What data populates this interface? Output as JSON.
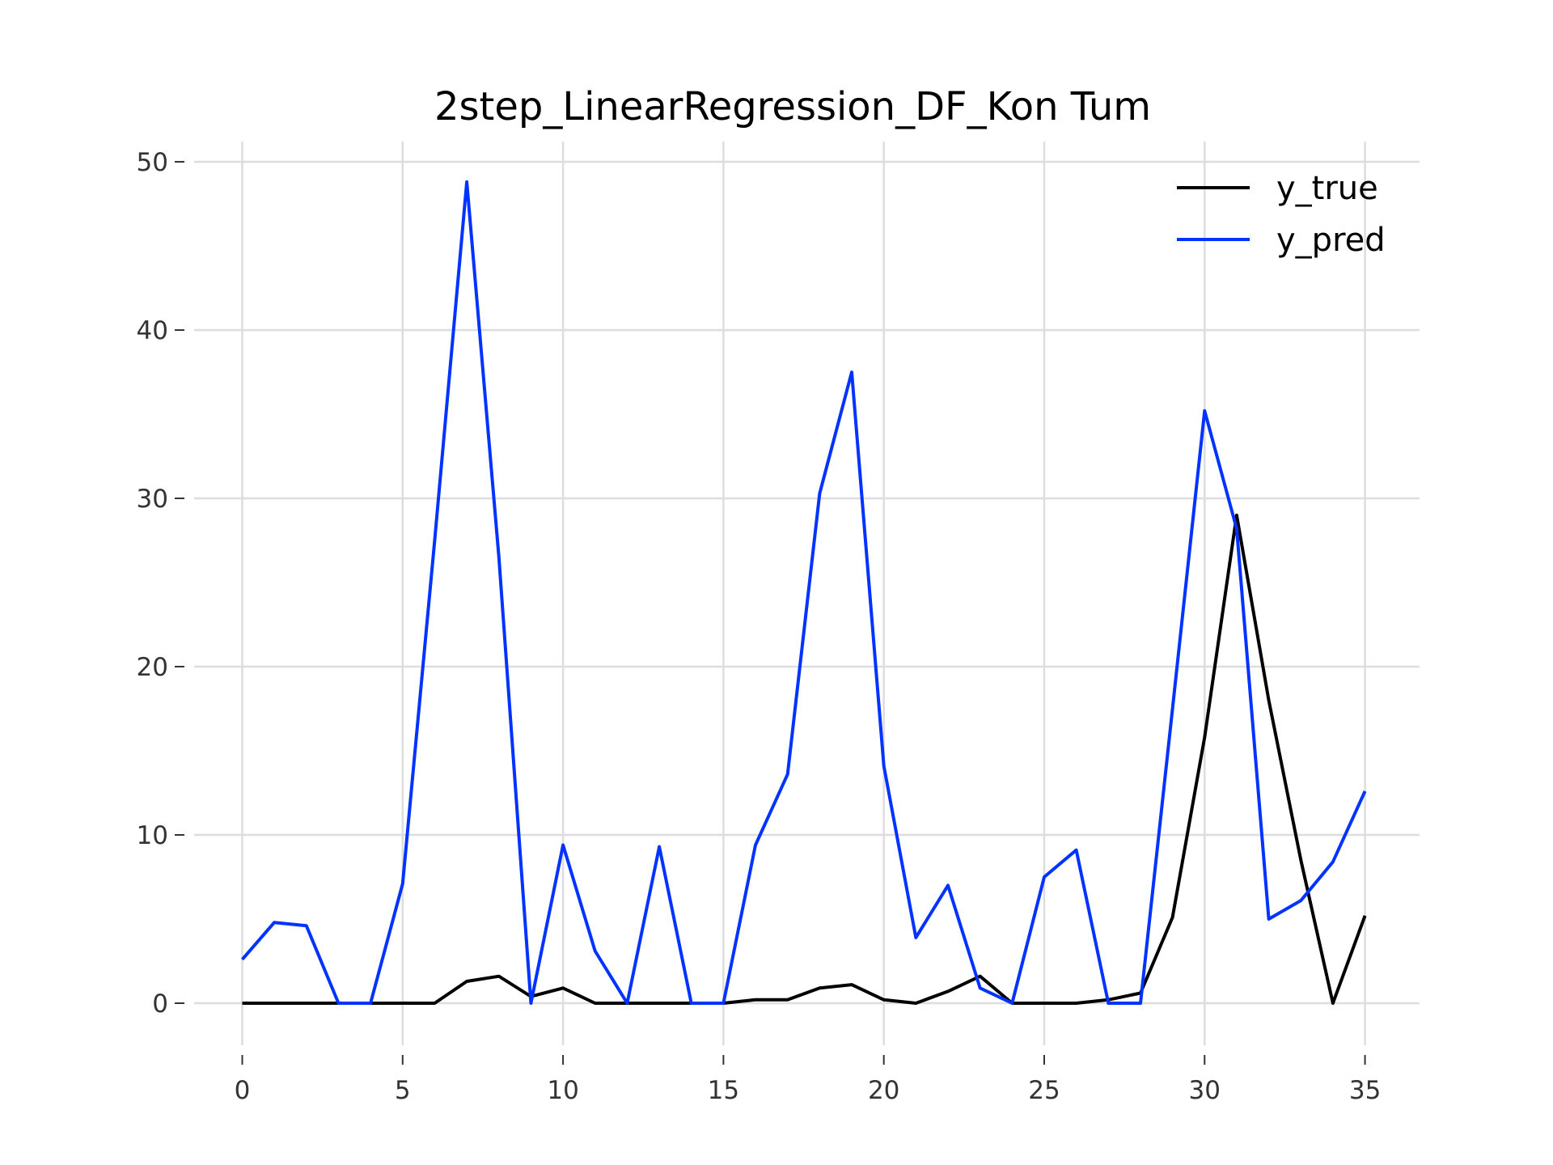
{
  "chart_data": {
    "type": "line",
    "title": "2step_LinearRegression_DF_Kon Tum",
    "xlabel": "",
    "ylabel": "",
    "xlim": [
      -1.5,
      36.7
    ],
    "ylim": [
      -2.5,
      51.2
    ],
    "xticks": [
      0,
      5,
      10,
      15,
      20,
      25,
      30,
      35
    ],
    "yticks": [
      0,
      10,
      20,
      30,
      40,
      50
    ],
    "grid": true,
    "legend_position": "top-right",
    "x": [
      0,
      1,
      2,
      3,
      4,
      5,
      6,
      7,
      8,
      9,
      10,
      11,
      12,
      13,
      14,
      15,
      16,
      17,
      18,
      19,
      20,
      21,
      22,
      23,
      24,
      25,
      26,
      27,
      28,
      29,
      30,
      31,
      32,
      33,
      34,
      35
    ],
    "series": [
      {
        "name": "y_true",
        "color": "#000000",
        "values": [
          0,
          0,
          0,
          0,
          0,
          0,
          0,
          1.3,
          1.6,
          0.4,
          0.9,
          0,
          0,
          0,
          0,
          0,
          0.2,
          0.2,
          0.9,
          1.1,
          0.2,
          0,
          0.7,
          1.6,
          0,
          0,
          0,
          0.2,
          0.6,
          5.1,
          15.8,
          29,
          18,
          8.5,
          0,
          5.2
        ]
      },
      {
        "name": "y_pred",
        "color": "#0033ff",
        "values": [
          2.6,
          4.8,
          4.6,
          0,
          0,
          7.1,
          27.5,
          48.8,
          26.5,
          0,
          9.4,
          3.1,
          0,
          9.3,
          0,
          0,
          9.4,
          13.6,
          30.3,
          37.5,
          14.1,
          3.9,
          7,
          0.9,
          0,
          7.5,
          9.1,
          0,
          0,
          17.5,
          35.2,
          28.2,
          5,
          6.1,
          8.4,
          12.6
        ]
      }
    ]
  }
}
